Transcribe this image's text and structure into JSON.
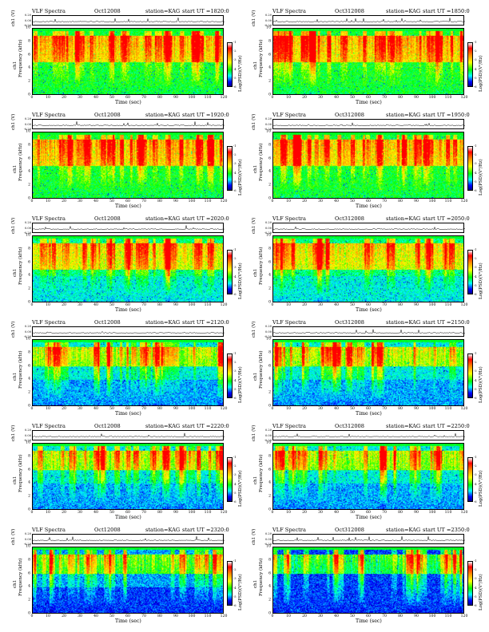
{
  "chart_data": {
    "type": "heatmap",
    "figure_kind": "VLF spectrogram panels with channel amplitude strip",
    "layout": "6 rows x 2 columns",
    "panels": [
      {
        "title": "VLF Spectra",
        "date": "Oct12008",
        "station": "station=KAG",
        "start": "start  UT =1820:0",
        "ut_hhmm": "1820"
      },
      {
        "title": "VLF Spectra",
        "date": "Oct312008",
        "station": "station=KAG",
        "start": "start  UT =1850:0",
        "ut_hhmm": "1850"
      },
      {
        "title": "VLF Spectra",
        "date": "Oct12008",
        "station": "station=KAG",
        "start": "start  UT =1920:0",
        "ut_hhmm": "1920"
      },
      {
        "title": "VLF Spectra",
        "date": "Oct312008",
        "station": "station=KAG",
        "start": "start  UT =1950:0",
        "ut_hhmm": "1950"
      },
      {
        "title": "VLF Spectra",
        "date": "Oct12008",
        "station": "station=KAG",
        "start": "start  UT =2020:0",
        "ut_hhmm": "2020"
      },
      {
        "title": "VLF Spectra",
        "date": "Oct312008",
        "station": "station=KAG",
        "start": "start  UT =2050:0",
        "ut_hhmm": "2050"
      },
      {
        "title": "VLF Spectra",
        "date": "Oct12008",
        "station": "station=KAG",
        "start": "start  UT =2120:0",
        "ut_hhmm": "2120"
      },
      {
        "title": "VLF Spectra",
        "date": "Oct312008",
        "station": "station=KAG",
        "start": "start  UT =2150:0",
        "ut_hhmm": "2150"
      },
      {
        "title": "VLF Spectra",
        "date": "Oct12008",
        "station": "station=KAG",
        "start": "start  UT =2220:0",
        "ut_hhmm": "2220"
      },
      {
        "title": "VLF Spectra",
        "date": "Oct312008",
        "station": "station=KAG",
        "start": "start  UT =2250:0",
        "ut_hhmm": "2250"
      },
      {
        "title": "VLF Spectra",
        "date": "Oct12008",
        "station": "station=KAG",
        "start": "start  UT =2320:0",
        "ut_hhmm": "2320"
      },
      {
        "title": "VLF Spectra",
        "date": "Oct312008",
        "station": "station=KAG",
        "start": "start  UT =2350:0",
        "ut_hhmm": "2350"
      }
    ],
    "ch_axis": {
      "label": "ch1 (V)",
      "ticks": [
        "0.20",
        "0.00",
        "-0.20"
      ],
      "ylim": [
        -0.2,
        0.2
      ]
    },
    "spec_axis": {
      "ylabel_top": "ch1",
      "ylabel": "Frequency  (kHz)",
      "yticks": [
        "0",
        "2",
        "4",
        "6",
        "8",
        "10"
      ],
      "ylim": [
        0,
        10
      ]
    },
    "time_axis": {
      "xlabel": "Time  (sec)",
      "xticks": [
        "0",
        "10",
        "20",
        "30",
        "40",
        "50",
        "60",
        "70",
        "80",
        "90",
        "100",
        "110",
        "120"
      ],
      "xlim": [
        0,
        120
      ]
    },
    "colorbar": {
      "label": "Log(PSD)(V²/Hz)",
      "ticks": [
        "-1",
        "-2",
        "-3",
        "-4",
        "-5",
        "-6"
      ],
      "colors": [
        "#ff0000",
        "#ff8c00",
        "#ffff00",
        "#00ff00",
        "#00ffff",
        "#0000ff",
        "#00008b"
      ]
    },
    "spectral_character": [
      {
        "panel": "1820",
        "background": "green",
        "emission_band_kHz": [
          5,
          9
        ],
        "noise_floor": "green"
      },
      {
        "panel": "1850",
        "background": "green",
        "emission_band_kHz": [
          5,
          9
        ],
        "noise_floor": "green"
      },
      {
        "panel": "1920",
        "background": "green",
        "emission_band_kHz": [
          5,
          9
        ],
        "noise_floor": "green"
      },
      {
        "panel": "1950",
        "background": "green",
        "emission_band_kHz": [
          5,
          9
        ],
        "noise_floor": "green"
      },
      {
        "panel": "2020",
        "background": "green-cyan",
        "emission_band_kHz": [
          5,
          9
        ],
        "noise_floor": "cyan"
      },
      {
        "panel": "2050",
        "background": "green-cyan",
        "emission_band_kHz": [
          5,
          9
        ],
        "noise_floor": "cyan"
      },
      {
        "panel": "2120",
        "background": "cyan",
        "emission_band_kHz": [
          6,
          9
        ],
        "noise_floor": "cyan-blue"
      },
      {
        "panel": "2150",
        "background": "cyan",
        "emission_band_kHz": [
          6,
          9
        ],
        "noise_floor": "cyan-blue"
      },
      {
        "panel": "2220",
        "background": "cyan",
        "emission_band_kHz": [
          6,
          9
        ],
        "noise_floor": "cyan-blue"
      },
      {
        "panel": "2250",
        "background": "cyan",
        "emission_band_kHz": [
          6,
          9
        ],
        "noise_floor": "cyan-blue"
      },
      {
        "panel": "2320",
        "background": "cyan-blue",
        "emission_band_kHz": [
          6,
          9
        ],
        "noise_floor": "blue"
      },
      {
        "panel": "2350",
        "background": "blue",
        "emission_band_kHz": [
          6,
          9
        ],
        "noise_floor": "blue"
      }
    ]
  }
}
